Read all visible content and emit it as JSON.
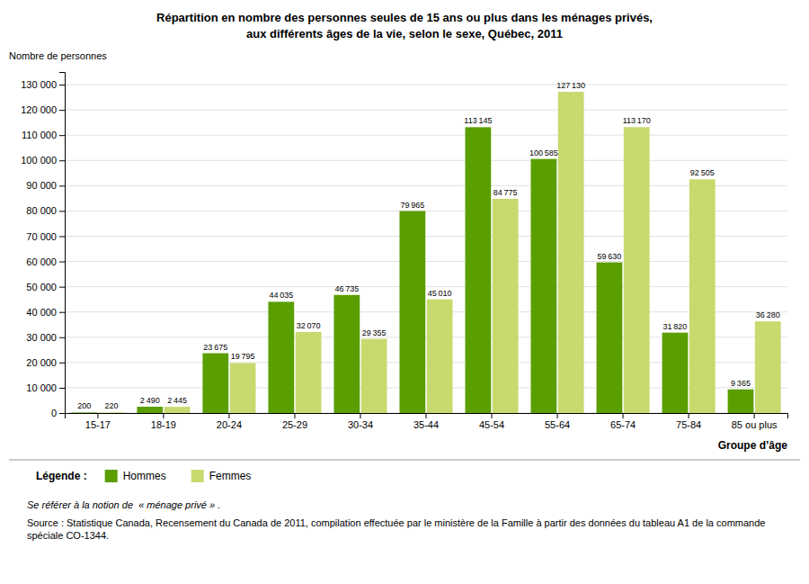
{
  "chart_data": {
    "type": "bar",
    "title": "Répartition en nombre des personnes seules de 15 ans ou plus dans les ménages privés,",
    "subtitle": "aux différents âges de la vie, selon le sexe, Québec, 2011",
    "xlabel": "Groupe d’âge",
    "ylabel": "Nombre de personnes",
    "categories": [
      "15-17",
      "18-19",
      "20-24",
      "25-29",
      "30-34",
      "35-44",
      "45-54",
      "55-64",
      "65-74",
      "75-84",
      "85 ou plus"
    ],
    "series": [
      {
        "name": "Hommes",
        "color": "#5a9e00",
        "values": [
          200,
          2490,
          23675,
          44035,
          46735,
          79965,
          113145,
          100585,
          59630,
          31820,
          9365
        ],
        "value_labels": [
          "200",
          "2 490",
          "23 675",
          "44 035",
          "46 735",
          "79 965",
          "113 145",
          "100 585",
          "59 630",
          "31 820",
          "9 365"
        ]
      },
      {
        "name": "Femmes",
        "color": "#c8d96e",
        "values": [
          220,
          2445,
          19795,
          32070,
          29355,
          45010,
          84775,
          127130,
          113170,
          92505,
          36280
        ],
        "value_labels": [
          "220",
          "2 445",
          "19 795",
          "32 070",
          "29 355",
          "45 010",
          "84 775",
          "127 130",
          "113 170",
          "92 505",
          "36 280"
        ]
      }
    ],
    "ylim": [
      0,
      135000
    ],
    "yticks": [
      0,
      {
        "value": 10000,
        "label": "10 000"
      },
      {
        "value": 20000,
        "label": "20 000"
      },
      {
        "value": 30000,
        "label": "30 000"
      },
      {
        "value": 40000,
        "label": "40 000"
      },
      {
        "value": 50000,
        "label": "50 000"
      },
      {
        "value": 60000,
        "label": "60 000"
      },
      {
        "value": 70000,
        "label": "70 000"
      },
      {
        "value": 80000,
        "label": "80 000"
      },
      {
        "value": 90000,
        "label": "90 000"
      },
      {
        "value": 100000,
        "label": "100 000"
      },
      {
        "value": 110000,
        "label": "110 000"
      },
      {
        "value": 120000,
        "label": "120 000"
      },
      {
        "value": 130000,
        "label": "130 000"
      }
    ],
    "grid": true,
    "data_labels": true,
    "legend": "bottom",
    "legend_title": "Légende :",
    "annotations": [
      "Se référer à la notion de  « ménage privé » .",
      "Source : Statistique Canada, Recensement du Canada de 2011, compilation effectuée par le ministère de la Famille à partir des données du tableau A1 de la commande spéciale CO-1344."
    ]
  }
}
